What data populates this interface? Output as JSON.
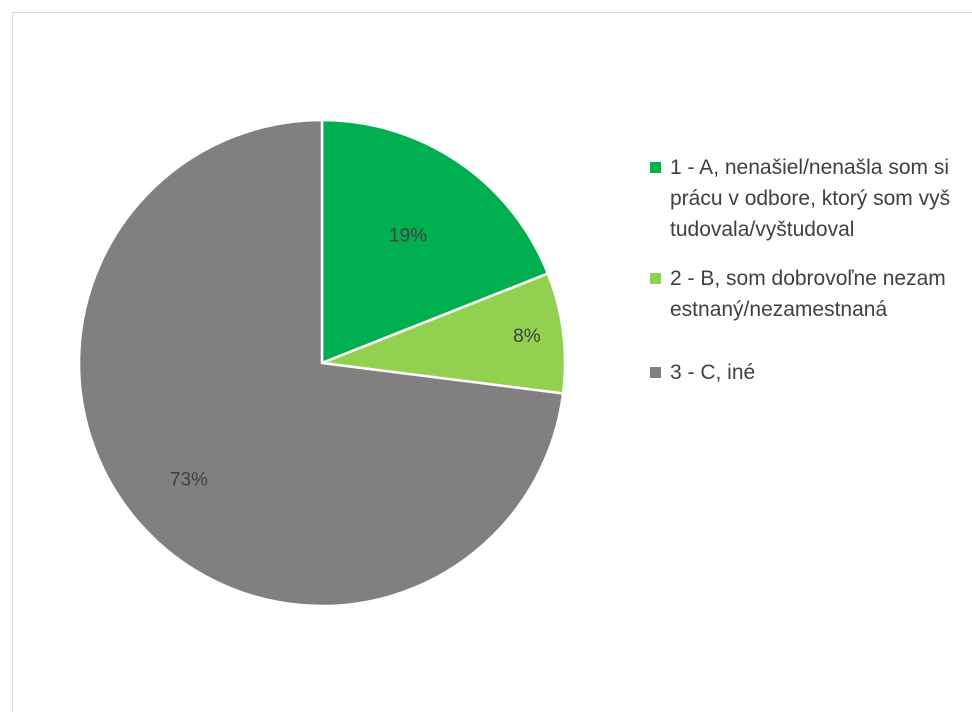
{
  "chart_data": {
    "type": "pie",
    "title": "",
    "legend_position": "right",
    "slices": [
      {
        "label": "1 - A, nenašiel/nenašla som si prácu v odbore, ktorý som vyštudovala/vyštudoval",
        "value": 19,
        "display": "19%",
        "color": "#00b050"
      },
      {
        "label": "2 - B, som dobrovoľne nezamestnaný/nezamestnaná",
        "value": 8,
        "display": "8%",
        "color": "#92d050"
      },
      {
        "label": "3 - C, iné",
        "value": 73,
        "display": "73%",
        "color": "#808080"
      }
    ]
  }
}
